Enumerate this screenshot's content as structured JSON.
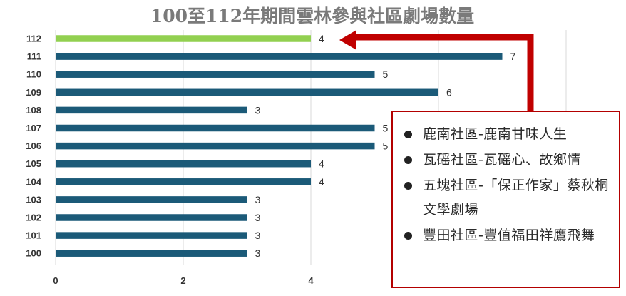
{
  "chart_data": {
    "type": "bar",
    "orientation": "horizontal",
    "title": "100至112年期間雲林參與社區劇場數量",
    "categories": [
      "112",
      "111",
      "110",
      "109",
      "108",
      "107",
      "106",
      "105",
      "104",
      "103",
      "102",
      "101",
      "100"
    ],
    "values": [
      4,
      7,
      5,
      6,
      3,
      5,
      5,
      4,
      4,
      3,
      3,
      3,
      3
    ],
    "highlight_category": "112",
    "colors": {
      "bar": "#1b5a78",
      "highlight": "#92d050",
      "arrow": "#c00000",
      "grid": "#d9d9d9"
    },
    "xlim": [
      0,
      8
    ],
    "xticks": [
      0,
      2,
      4
    ],
    "grid": true,
    "legend": "none"
  },
  "callout": {
    "items": [
      "鹿南社區-鹿南甘味人生",
      "瓦磘社區-瓦磘心、故鄉情",
      "五塊社區-「保正作家」蔡秋桐文學劇場",
      "豐田社區-豐值福田祥鷹飛舞"
    ]
  }
}
